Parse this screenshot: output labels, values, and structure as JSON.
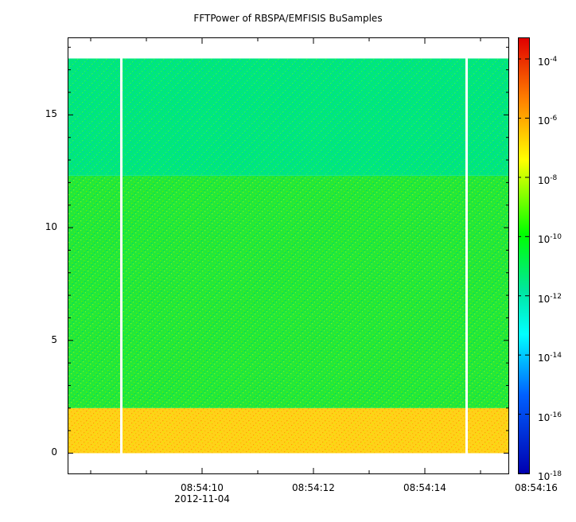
{
  "chart_data": {
    "type": "heatmap",
    "title": "FFTPower of RBSPA/EMFISIS  BuSamples",
    "xlabel": "",
    "ylabel": "",
    "x_tick_labels": [
      "08:54:10",
      "08:54:12",
      "08:54:14",
      "08:54:16"
    ],
    "x_date_label": "2012-11-04",
    "y_ticks": [
      0,
      5,
      10,
      15
    ],
    "ylim": [
      -0.9,
      18.4
    ],
    "data_ylim": [
      0,
      17.5
    ],
    "xlim_seconds_after_085409": [
      -1.4,
      6.5
    ],
    "data_gaps_seconds": [
      -0.45,
      5.75
    ],
    "bands": [
      {
        "y_from": 0,
        "y_to": 2,
        "level_exp": -8.2,
        "color": "#ffd11a"
      },
      {
        "y_from": 2,
        "y_to": 12.3,
        "level_exp": -10.7,
        "color": "#22e83a"
      },
      {
        "y_from": 12.3,
        "y_to": 17.5,
        "level_exp": -12.0,
        "color": "#00e87a"
      }
    ],
    "colorbar": {
      "scale": "log",
      "min_exp": -18,
      "max_exp": -3.3,
      "tick_exps": [
        -4,
        -6,
        -8,
        -10,
        -12,
        -14,
        -16,
        -18
      ],
      "tick_base": "10"
    }
  }
}
